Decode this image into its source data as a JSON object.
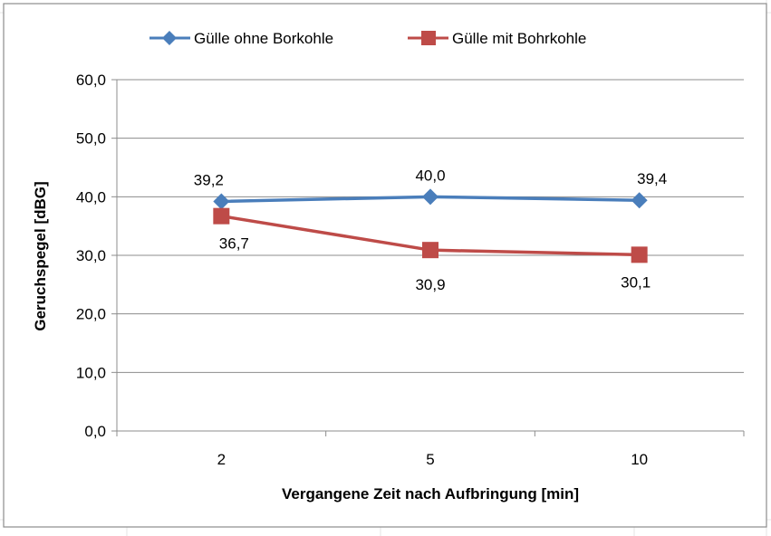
{
  "chart_data": {
    "type": "line",
    "title": "",
    "xlabel": "Vergangene Zeit nach Aufbringung  [min]",
    "ylabel": "Geruchspegel  [dBG]",
    "categories": [
      "2",
      "5",
      "10"
    ],
    "ylim": [
      0,
      60
    ],
    "yticks": [
      "0,0",
      "10,0",
      "20,0",
      "30,0",
      "40,0",
      "50,0",
      "60,0"
    ],
    "grid": true,
    "legend_position": "top",
    "series": [
      {
        "name": "Gülle ohne Borkohle",
        "values": [
          39.2,
          40.0,
          39.4
        ],
        "labels": [
          "39,2",
          "40,0",
          "39,4"
        ],
        "color": "#4a7ebb",
        "marker": "diamond"
      },
      {
        "name": "Gülle mit Bohrkohle",
        "values": [
          36.7,
          30.9,
          30.1
        ],
        "labels": [
          "36,7",
          "30,9",
          "30,1"
        ],
        "color": "#be4b48",
        "marker": "square"
      }
    ]
  }
}
